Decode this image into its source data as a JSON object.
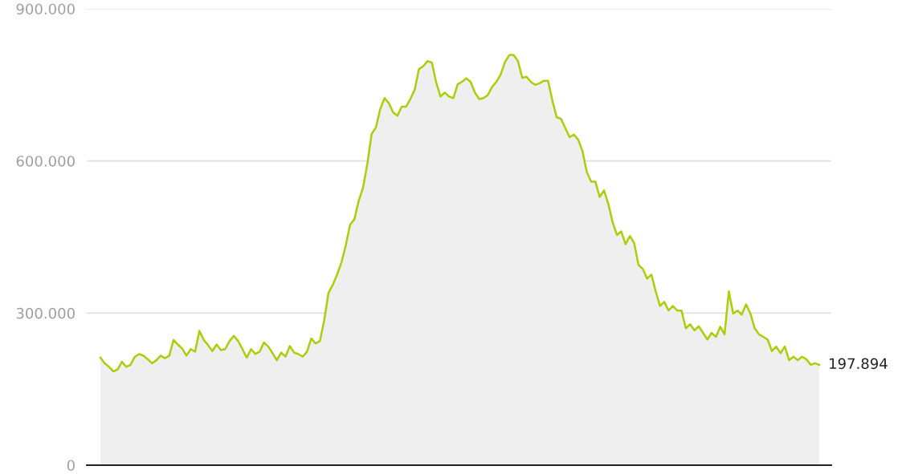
{
  "chart_data": {
    "type": "area",
    "categories": [
      null,
      null,
      null,
      null,
      null,
      null,
      null,
      null,
      null,
      null,
      null,
      null,
      null,
      null,
      null,
      null,
      null,
      null,
      null,
      null,
      null,
      null,
      null,
      null,
      null,
      null,
      null,
      null,
      null,
      null,
      null,
      null,
      null,
      null,
      null,
      null,
      null,
      null,
      null,
      null,
      null,
      null,
      null,
      null,
      null,
      null,
      null,
      null,
      null,
      null,
      null,
      null,
      null,
      null,
      null,
      null,
      null,
      null,
      null,
      null,
      null,
      null,
      null,
      null,
      null,
      null,
      null,
      null,
      null,
      null,
      null,
      null,
      null,
      null,
      null,
      null,
      null,
      null,
      null,
      null,
      null,
      null,
      null,
      null,
      null,
      null,
      null,
      null,
      null,
      null,
      null,
      null,
      null,
      null,
      null,
      null,
      null,
      null,
      null,
      null,
      null,
      null,
      null,
      null,
      null,
      null,
      null,
      null,
      null,
      null,
      null,
      null,
      null,
      null,
      null,
      null,
      null,
      null,
      null,
      null,
      null,
      null,
      null,
      null,
      null,
      null,
      null,
      null,
      null,
      null,
      null,
      null,
      null,
      null,
      null,
      null,
      null,
      null,
      null,
      null,
      null,
      null,
      null,
      null,
      null,
      null,
      null,
      null,
      null,
      null,
      null,
      null,
      null,
      null,
      null,
      null,
      null,
      null,
      null,
      null,
      null,
      null,
      null,
      null,
      null,
      null,
      null,
      null
    ],
    "series": [
      {
        "color": "#a8cf0a",
        "values": [
          212000,
          201000,
          194000,
          185000,
          189000,
          204000,
          194000,
          198000,
          214000,
          219000,
          216000,
          209000,
          201000,
          207000,
          216000,
          211000,
          216000,
          247000,
          238000,
          230000,
          216000,
          229000,
          224000,
          265000,
          247000,
          237000,
          225000,
          238000,
          227000,
          229000,
          245000,
          255000,
          245000,
          229000,
          212000,
          229000,
          219000,
          224000,
          242000,
          234000,
          221000,
          207000,
          222000,
          214000,
          235000,
          222000,
          219000,
          214000,
          224000,
          250000,
          240000,
          245000,
          286000,
          340000,
          356000,
          376000,
          400000,
          433000,
          474000,
          485000,
          521000,
          547000,
          593000,
          653000,
          666000,
          702000,
          724000,
          714000,
          696000,
          689000,
          707000,
          707000,
          722000,
          740000,
          781000,
          787000,
          797000,
          794000,
          755000,
          727000,
          735000,
          727000,
          724000,
          751000,
          756000,
          763000,
          756000,
          735000,
          722000,
          724000,
          730000,
          746000,
          756000,
          771000,
          795000,
          809000,
          809000,
          797000,
          764000,
          766000,
          756000,
          750000,
          753000,
          758000,
          758000,
          719000,
          686000,
          683000,
          665000,
          647000,
          652000,
          642000,
          619000,
          578000,
          559000,
          559000,
          529000,
          542000,
          515000,
          479000,
          454000,
          461000,
          436000,
          452000,
          438000,
          395000,
          387000,
          368000,
          376000,
          343000,
          314000,
          322000,
          305000,
          314000,
          305000,
          305000,
          270000,
          278000,
          266000,
          274000,
          261000,
          248000,
          261000,
          253000,
          273000,
          258000,
          343000,
          299000,
          305000,
          297000,
          317000,
          299000,
          270000,
          258000,
          253000,
          248000,
          225000,
          234000,
          221000,
          234000,
          207000,
          214000,
          207000,
          214000,
          209000,
          198000,
          201000,
          197894
        ],
        "value_labels": [
          null,
          null,
          null,
          null,
          null,
          null,
          null,
          null,
          null,
          null,
          null,
          null,
          null,
          null,
          null,
          null,
          null,
          null,
          null,
          null,
          null,
          null,
          null,
          null,
          null,
          null,
          null,
          null,
          null,
          null,
          null,
          null,
          null,
          null,
          null,
          null,
          null,
          null,
          null,
          null,
          null,
          null,
          null,
          null,
          null,
          null,
          null,
          null,
          null,
          null,
          null,
          null,
          null,
          null,
          null,
          null,
          null,
          null,
          null,
          null,
          null,
          null,
          null,
          null,
          null,
          null,
          null,
          null,
          null,
          null,
          null,
          null,
          null,
          null,
          null,
          null,
          null,
          null,
          null,
          null,
          null,
          null,
          null,
          null,
          null,
          null,
          null,
          null,
          null,
          null,
          null,
          null,
          null,
          null,
          null,
          null,
          null,
          null,
          null,
          null,
          null,
          null,
          null,
          null,
          null,
          null,
          null,
          null,
          null,
          null,
          null,
          null,
          null,
          null,
          null,
          null,
          null,
          null,
          null,
          null,
          null,
          null,
          null,
          null,
          null,
          null,
          null,
          null,
          null,
          null,
          null,
          null,
          null,
          null,
          null,
          null,
          null,
          null,
          null,
          null,
          null,
          null,
          null,
          null,
          null,
          null,
          null,
          null,
          null,
          null,
          null,
          null,
          null,
          null,
          null,
          null,
          null,
          null,
          null,
          null,
          null,
          null,
          null,
          null,
          null,
          null,
          null,
          "197.894"
        ]
      }
    ],
    "ylim": [
      0,
      900000
    ],
    "yticks": [
      0,
      {
        "value": 300000,
        "label": "300.000"
      },
      {
        "value": 600000,
        "label": "600.000"
      },
      {
        "value": 900000,
        "label": "900.000"
      }
    ],
    "grid": "y",
    "tick_labels": "y"
  }
}
